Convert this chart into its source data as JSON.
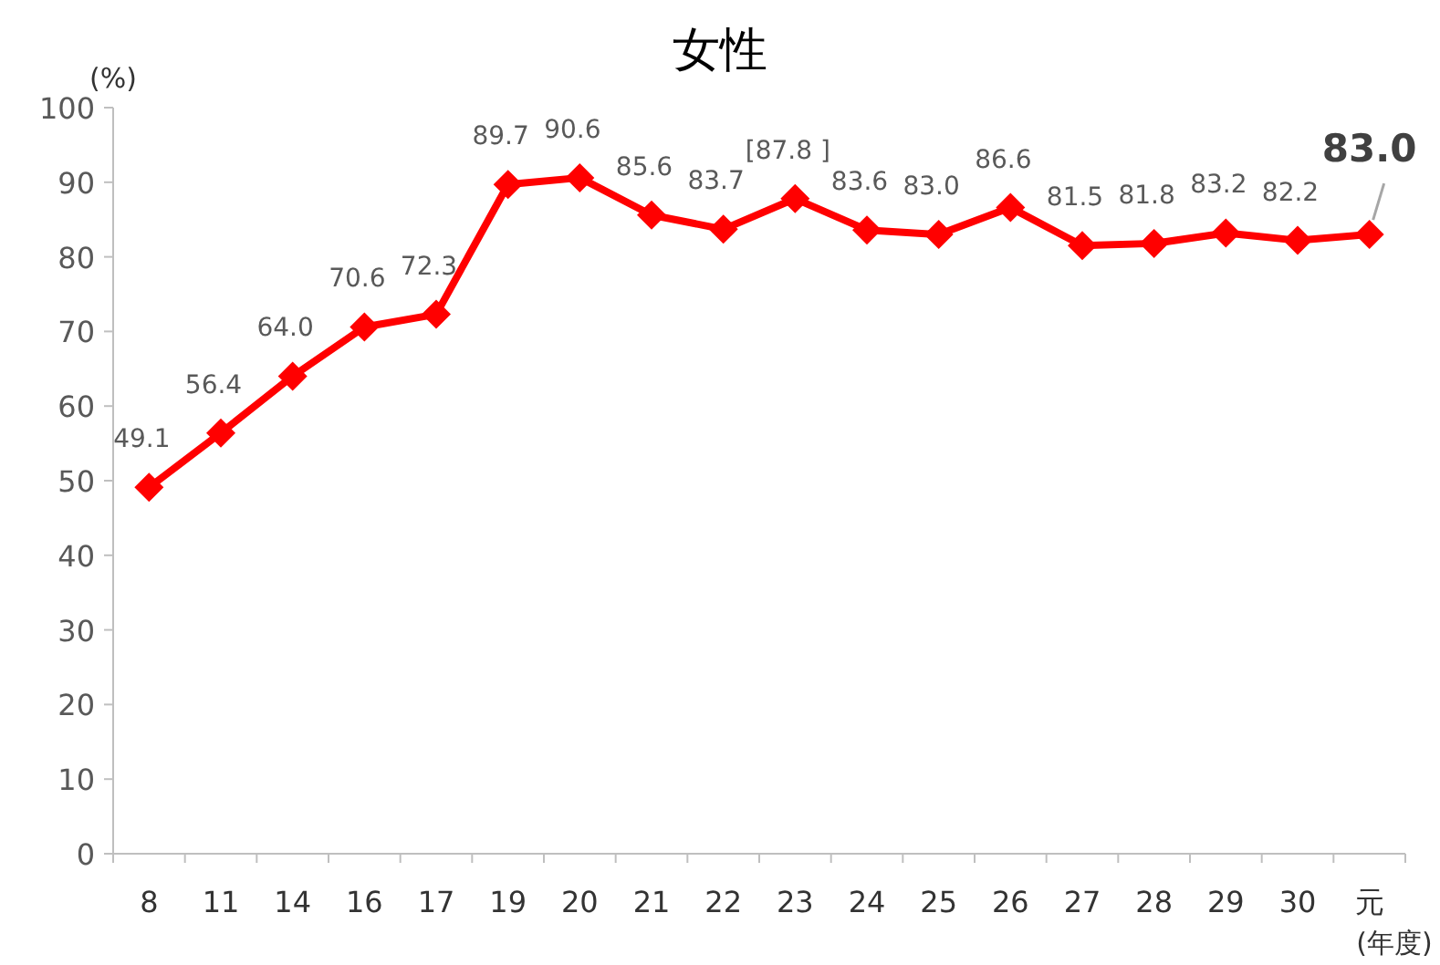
{
  "chart_data": {
    "type": "line",
    "title": "女性",
    "ylabel": "(%)",
    "xlabel": "(年度)",
    "categories": [
      "8",
      "11",
      "14",
      "16",
      "17",
      "19",
      "20",
      "21",
      "22",
      "23",
      "24",
      "25",
      "26",
      "27",
      "28",
      "29",
      "30",
      "元"
    ],
    "series": [
      {
        "color": "#ff0000",
        "values": [
          49.1,
          56.4,
          64.0,
          70.6,
          72.3,
          89.7,
          90.6,
          85.6,
          83.7,
          87.8,
          83.6,
          83.0,
          86.6,
          81.5,
          81.8,
          83.2,
          82.2,
          83.0
        ],
        "value_labels": [
          "49.1",
          "56.4",
          "64.0",
          "70.6",
          "72.3",
          "89.7",
          "90.6",
          "85.6",
          "83.7",
          "[87.8 ]",
          "83.6",
          "83.0",
          "86.6",
          "81.5",
          "81.8",
          "83.2",
          "82.2",
          "83.0"
        ]
      }
    ],
    "ylim": [
      0,
      100
    ],
    "yticks": [
      0,
      10,
      20,
      30,
      40,
      50,
      60,
      70,
      80,
      90,
      100
    ],
    "marker": "diamond",
    "line_style": "solid",
    "grid": false
  }
}
